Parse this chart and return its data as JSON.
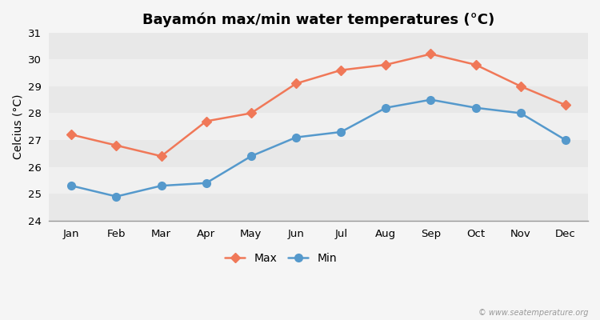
{
  "title": "Bayamón max/min water temperatures (°C)",
  "ylabel": "Celcius (°C)",
  "months": [
    "Jan",
    "Feb",
    "Mar",
    "Apr",
    "May",
    "Jun",
    "Jul",
    "Aug",
    "Sep",
    "Oct",
    "Nov",
    "Dec"
  ],
  "max_values": [
    27.2,
    26.8,
    26.4,
    27.7,
    28.0,
    29.1,
    29.6,
    29.8,
    30.2,
    29.8,
    29.0,
    28.3
  ],
  "min_values": [
    25.3,
    24.9,
    25.3,
    25.4,
    26.4,
    27.1,
    27.3,
    28.2,
    28.5,
    28.2,
    28.0,
    27.0
  ],
  "max_color": "#f07858",
  "min_color": "#5599cc",
  "fig_bg_color": "#f5f5f5",
  "band_colors": [
    "#e8e8e8",
    "#f0f0f0"
  ],
  "ylim": [
    24,
    31
  ],
  "yticks": [
    24,
    25,
    26,
    27,
    28,
    29,
    30,
    31
  ],
  "legend_labels": [
    "Max",
    "Min"
  ],
  "watermark": "© www.seatemperature.org",
  "title_fontsize": 13,
  "axis_label_fontsize": 10,
  "tick_fontsize": 9.5,
  "legend_fontsize": 10
}
